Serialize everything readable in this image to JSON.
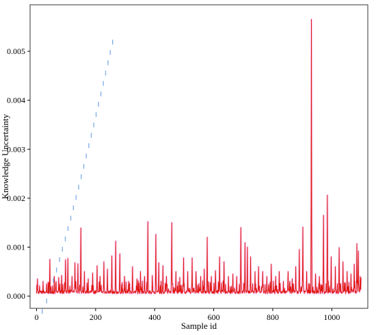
{
  "chart_data": {
    "type": "line",
    "title": "",
    "xlabel": "Sample id",
    "ylabel": "Knowledge Uncertainty",
    "xlim": [
      -22,
      1122
    ],
    "ylim": [
      -0.00025,
      0.00595
    ],
    "x_ticks": [
      0,
      200,
      400,
      600,
      800,
      1000
    ],
    "y_ticks": [
      0.0,
      0.001,
      0.002,
      0.003,
      0.004,
      0.005
    ],
    "x_tick_labels": [
      "0",
      "200",
      "400",
      "600",
      "800",
      "1000"
    ],
    "y_tick_labels": [
      "0.000",
      "0.001",
      "0.002",
      "0.003",
      "0.004",
      "0.005"
    ],
    "grid": false,
    "legend": "none",
    "colors": {
      "line": "#e0140f",
      "frame": "#333333",
      "halo": "#f3a6f3",
      "guide_dots": "#1e6fd6"
    },
    "series": [
      {
        "x_start": 0,
        "x_step": 1,
        "n_points": 1100,
        "baseline": 5e-05,
        "peaks": [
          {
            "x": 3,
            "y": 0.00035
          },
          {
            "x": 22,
            "y": 0.0003
          },
          {
            "x": 34,
            "y": 0.00025
          },
          {
            "x": 45,
            "y": 0.00075
          },
          {
            "x": 60,
            "y": 0.0004
          },
          {
            "x": 75,
            "y": 0.00038
          },
          {
            "x": 85,
            "y": 0.00042
          },
          {
            "x": 98,
            "y": 0.00074
          },
          {
            "x": 106,
            "y": 0.00077
          },
          {
            "x": 120,
            "y": 0.0004
          },
          {
            "x": 130,
            "y": 0.00068
          },
          {
            "x": 140,
            "y": 0.00066
          },
          {
            "x": 150,
            "y": 0.00139
          },
          {
            "x": 162,
            "y": 0.0005
          },
          {
            "x": 175,
            "y": 0.00035
          },
          {
            "x": 190,
            "y": 0.00047
          },
          {
            "x": 205,
            "y": 0.00062
          },
          {
            "x": 215,
            "y": 0.0004
          },
          {
            "x": 228,
            "y": 0.0007
          },
          {
            "x": 240,
            "y": 0.00055
          },
          {
            "x": 255,
            "y": 0.00082
          },
          {
            "x": 268,
            "y": 0.00112
          },
          {
            "x": 282,
            "y": 0.00086
          },
          {
            "x": 298,
            "y": 0.0004
          },
          {
            "x": 312,
            "y": 0.0003
          },
          {
            "x": 325,
            "y": 0.0006
          },
          {
            "x": 340,
            "y": 0.00035
          },
          {
            "x": 352,
            "y": 0.0005
          },
          {
            "x": 366,
            "y": 0.0004
          },
          {
            "x": 377,
            "y": 0.00152
          },
          {
            "x": 392,
            "y": 0.00042
          },
          {
            "x": 404,
            "y": 0.00126
          },
          {
            "x": 414,
            "y": 0.00068
          },
          {
            "x": 428,
            "y": 0.00062
          },
          {
            "x": 440,
            "y": 0.0004
          },
          {
            "x": 458,
            "y": 0.0015
          },
          {
            "x": 472,
            "y": 0.0005
          },
          {
            "x": 485,
            "y": 0.00038
          },
          {
            "x": 498,
            "y": 0.00078
          },
          {
            "x": 512,
            "y": 0.0005
          },
          {
            "x": 527,
            "y": 0.00078
          },
          {
            "x": 540,
            "y": 0.0005
          },
          {
            "x": 556,
            "y": 0.0004
          },
          {
            "x": 568,
            "y": 0.00055
          },
          {
            "x": 578,
            "y": 0.0012
          },
          {
            "x": 592,
            "y": 0.0004
          },
          {
            "x": 606,
            "y": 0.00052
          },
          {
            "x": 620,
            "y": 0.0008
          },
          {
            "x": 635,
            "y": 0.0007
          },
          {
            "x": 650,
            "y": 0.0004
          },
          {
            "x": 665,
            "y": 0.00045
          },
          {
            "x": 678,
            "y": 0.0004
          },
          {
            "x": 692,
            "y": 0.0014
          },
          {
            "x": 706,
            "y": 0.00109
          },
          {
            "x": 714,
            "y": 0.001
          },
          {
            "x": 725,
            "y": 0.0008
          },
          {
            "x": 740,
            "y": 0.0005
          },
          {
            "x": 752,
            "y": 0.0006
          },
          {
            "x": 766,
            "y": 0.0005
          },
          {
            "x": 780,
            "y": 0.0004
          },
          {
            "x": 795,
            "y": 0.00065
          },
          {
            "x": 810,
            "y": 0.0004
          },
          {
            "x": 822,
            "y": 0.0005
          },
          {
            "x": 836,
            "y": 0.0003
          },
          {
            "x": 852,
            "y": 0.0005
          },
          {
            "x": 866,
            "y": 0.00035
          },
          {
            "x": 878,
            "y": 0.0006
          },
          {
            "x": 890,
            "y": 0.00095
          },
          {
            "x": 902,
            "y": 0.00141
          },
          {
            "x": 915,
            "y": 0.0005
          },
          {
            "x": 931,
            "y": 0.00565
          },
          {
            "x": 945,
            "y": 0.00045
          },
          {
            "x": 958,
            "y": 0.0004
          },
          {
            "x": 972,
            "y": 0.00165
          },
          {
            "x": 985,
            "y": 0.00206
          },
          {
            "x": 998,
            "y": 0.0008
          },
          {
            "x": 1012,
            "y": 0.0006
          },
          {
            "x": 1025,
            "y": 0.00099
          },
          {
            "x": 1038,
            "y": 0.0007
          },
          {
            "x": 1052,
            "y": 0.0005
          },
          {
            "x": 1065,
            "y": 0.00045
          },
          {
            "x": 1076,
            "y": 0.00065
          },
          {
            "x": 1085,
            "y": 0.00107
          },
          {
            "x": 1090,
            "y": 0.00092
          },
          {
            "x": 1096,
            "y": 0.0004
          },
          {
            "x": 1099,
            "y": 0.00038
          }
        ]
      }
    ]
  }
}
